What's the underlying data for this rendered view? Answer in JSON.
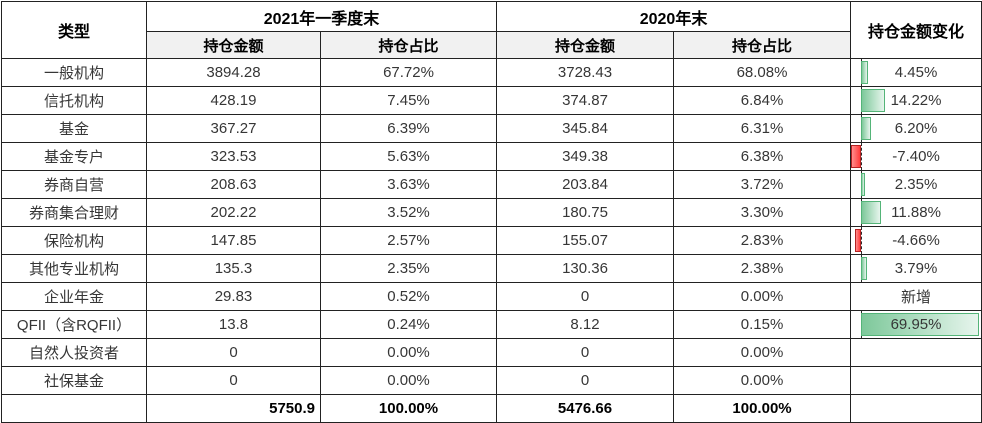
{
  "header": {
    "type": "类型",
    "group_2021": "2021年一季度末",
    "group_2020": "2020年末",
    "sub_amount": "持仓金额",
    "sub_ratio": "持仓占比",
    "change": "持仓金额变化"
  },
  "colors": {
    "positive_bar_border": "#54b478",
    "positive_bar_fill": "#7dc89a",
    "negative_bar_border": "#b42222",
    "negative_bar_fill": "#ff3c3c",
    "subheader_bg": "#f1f1f1",
    "grid": "#222222"
  },
  "rows": [
    {
      "type": "一般机构",
      "amount_2021": "3894.28",
      "ratio_2021": "67.72%",
      "amount_2020": "3728.43",
      "ratio_2020": "68.08%",
      "change_label": "4.45%",
      "change_value": 4.45
    },
    {
      "type": "信托机构",
      "amount_2021": "428.19",
      "ratio_2021": "7.45%",
      "amount_2020": "374.87",
      "ratio_2020": "6.84%",
      "change_label": "14.22%",
      "change_value": 14.22
    },
    {
      "type": "基金",
      "amount_2021": "367.27",
      "ratio_2021": "6.39%",
      "amount_2020": "345.84",
      "ratio_2020": "6.31%",
      "change_label": "6.20%",
      "change_value": 6.2
    },
    {
      "type": "基金专户",
      "amount_2021": "323.53",
      "ratio_2021": "5.63%",
      "amount_2020": "349.38",
      "ratio_2020": "6.38%",
      "change_label": "-7.40%",
      "change_value": -7.4
    },
    {
      "type": "券商自营",
      "amount_2021": "208.63",
      "ratio_2021": "3.63%",
      "amount_2020": "203.84",
      "ratio_2020": "3.72%",
      "change_label": "2.35%",
      "change_value": 2.35
    },
    {
      "type": "券商集合理财",
      "amount_2021": "202.22",
      "ratio_2021": "3.52%",
      "amount_2020": "180.75",
      "ratio_2020": "3.30%",
      "change_label": "11.88%",
      "change_value": 11.88
    },
    {
      "type": "保险机构",
      "amount_2021": "147.85",
      "ratio_2021": "2.57%",
      "amount_2020": "155.07",
      "ratio_2020": "2.83%",
      "change_label": "-4.66%",
      "change_value": -4.66
    },
    {
      "type": "其他专业机构",
      "amount_2021": "135.3",
      "ratio_2021": "2.35%",
      "amount_2020": "130.36",
      "ratio_2020": "2.38%",
      "change_label": "3.79%",
      "change_value": 3.79
    },
    {
      "type": "企业年金",
      "amount_2021": "29.83",
      "ratio_2021": "0.52%",
      "amount_2020": "0",
      "ratio_2020": "0.00%",
      "change_label": "新增",
      "change_value": null
    },
    {
      "type": "QFII（含RQFII）",
      "amount_2021": "13.8",
      "ratio_2021": "0.24%",
      "amount_2020": "8.12",
      "ratio_2020": "0.15%",
      "change_label": "69.95%",
      "change_value": 69.95
    },
    {
      "type": "自然人投资者",
      "amount_2021": "0",
      "ratio_2021": "0.00%",
      "amount_2020": "0",
      "ratio_2020": "0.00%",
      "change_label": "",
      "change_value": null
    },
    {
      "type": "社保基金",
      "amount_2021": "0",
      "ratio_2021": "0.00%",
      "amount_2020": "0",
      "ratio_2020": "0.00%",
      "change_label": "",
      "change_value": null
    }
  ],
  "total": {
    "type": "",
    "amount_2021": "5750.9",
    "ratio_2021": "100.00%",
    "amount_2020": "5476.66",
    "ratio_2020": "100.00%",
    "change_label": ""
  },
  "chart_data": {
    "type": "table",
    "categories": [
      "一般机构",
      "信托机构",
      "基金",
      "基金专户",
      "券商自营",
      "券商集合理财",
      "保险机构",
      "其他专业机构",
      "企业年金",
      "QFII（含RQFII）",
      "自然人投资者",
      "社保基金"
    ],
    "series": [
      {
        "name": "2021年一季度末 持仓金额",
        "values": [
          3894.28,
          428.19,
          367.27,
          323.53,
          208.63,
          202.22,
          147.85,
          135.3,
          29.83,
          13.8,
          0,
          0
        ]
      },
      {
        "name": "2021年一季度末 持仓占比(%)",
        "values": [
          67.72,
          7.45,
          6.39,
          5.63,
          3.63,
          3.52,
          2.57,
          2.35,
          0.52,
          0.24,
          0.0,
          0.0
        ]
      },
      {
        "name": "2020年末 持仓金额",
        "values": [
          3728.43,
          374.87,
          345.84,
          349.38,
          203.84,
          180.75,
          155.07,
          130.36,
          0,
          8.12,
          0,
          0
        ]
      },
      {
        "name": "2020年末 持仓占比(%)",
        "values": [
          68.08,
          6.84,
          6.31,
          6.38,
          3.72,
          3.3,
          2.83,
          2.38,
          0.0,
          0.15,
          0.0,
          0.0
        ]
      },
      {
        "name": "持仓金额变化(%)",
        "values": [
          4.45,
          14.22,
          6.2,
          -7.4,
          2.35,
          11.88,
          -4.66,
          3.79,
          null,
          69.95,
          null,
          null
        ]
      }
    ],
    "totals": {
      "amount_2021": 5750.9,
      "ratio_2021": 100.0,
      "amount_2020": 5476.66,
      "ratio_2020": 100.0
    },
    "annotations": {
      "new_entry_row": "企业年金",
      "new_entry_label": "新增"
    },
    "databar": {
      "column": "持仓金额变化",
      "min": -7.4,
      "max": 69.95,
      "positive_color": "green",
      "negative_color": "red",
      "axis": "dashed"
    }
  }
}
